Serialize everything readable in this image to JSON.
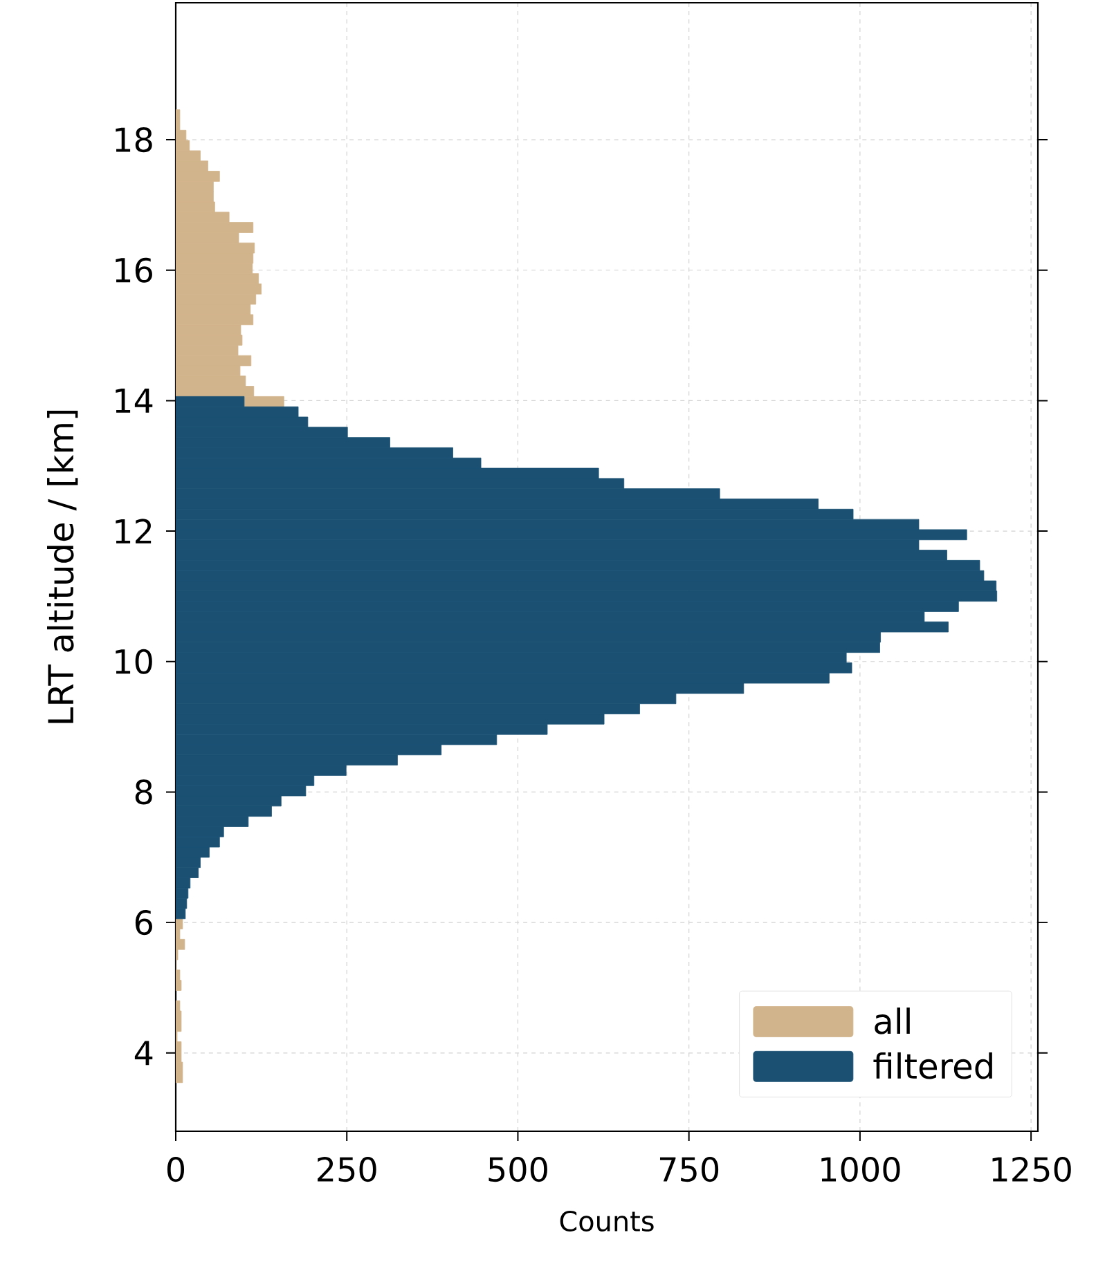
{
  "chart_data": {
    "type": "histogram",
    "orientation": "horizontal",
    "xlabel": "Counts",
    "ylabel": "LRT altitude / [km]",
    "bins": [
      3.545,
      3.702,
      3.859,
      4.016,
      4.173,
      4.33,
      4.487,
      4.644,
      4.801,
      4.958,
      5.115,
      5.272,
      5.429,
      5.586,
      5.743,
      5.9,
      6.057,
      6.214,
      6.371,
      6.528,
      6.685,
      6.842,
      6.999,
      7.156,
      7.313,
      7.47,
      7.627,
      7.784,
      7.941,
      8.098,
      8.255,
      8.412,
      8.569,
      8.726,
      8.883,
      9.04,
      9.197,
      9.354,
      9.511,
      9.668,
      9.825,
      9.982,
      10.139,
      10.296,
      10.453,
      10.61,
      10.767,
      10.924,
      11.081,
      11.238,
      11.395,
      11.552,
      11.709,
      11.866,
      12.023,
      12.18,
      12.337,
      12.494,
      12.651,
      12.808,
      12.965,
      13.122,
      13.279,
      13.436,
      13.593,
      13.75,
      13.907,
      14.064,
      14.221,
      14.378,
      14.535,
      14.692,
      14.849,
      15.006,
      15.163,
      15.32,
      15.477,
      15.634,
      15.791,
      15.948,
      16.105,
      16.262,
      16.419,
      16.576,
      16.733,
      16.89,
      17.047,
      17.204,
      17.361,
      17.518,
      17.675,
      17.832,
      17.989,
      18.146,
      18.303,
      18.46
    ],
    "series": [
      {
        "name": "all",
        "color": "#d2b48c",
        "values": [
          10,
          10,
          8,
          8,
          2,
          8,
          8,
          6,
          null,
          8,
          6,
          0,
          3,
          13,
          6,
          10,
          null,
          null,
          null,
          null,
          null,
          null,
          null,
          null,
          null,
          null,
          null,
          null,
          null,
          null,
          null,
          null,
          null,
          null,
          null,
          null,
          null,
          null,
          null,
          null,
          null,
          null,
          null,
          null,
          null,
          null,
          null,
          null,
          null,
          null,
          null,
          null,
          null,
          null,
          null,
          null,
          null,
          null,
          null,
          null,
          null,
          null,
          null,
          null,
          null,
          null,
          158,
          114,
          102,
          94,
          110,
          91,
          97,
          95,
          113,
          109,
          117,
          125,
          121,
          112,
          113,
          115,
          92,
          113,
          78,
          57,
          55,
          55,
          64,
          47,
          36,
          20,
          15,
          6,
          6
        ]
      },
      {
        "name": "filtered",
        "color": "#1b5073",
        "values": [
          null,
          null,
          null,
          null,
          null,
          null,
          null,
          null,
          null,
          null,
          null,
          null,
          null,
          null,
          null,
          null,
          14,
          16,
          18,
          21,
          33,
          36,
          49,
          64,
          70,
          106,
          140,
          154,
          190,
          202,
          249,
          324,
          388,
          469,
          543,
          626,
          678,
          731,
          830,
          955,
          988,
          980,
          1029,
          1030,
          1129,
          1094,
          1144,
          1200,
          1199,
          1181,
          1175,
          1127,
          1086,
          1156,
          1086,
          990,
          939,
          795,
          655,
          618,
          446,
          405,
          313,
          251,
          193,
          179,
          100,
          null,
          null,
          null,
          null,
          null,
          null,
          null,
          null,
          null,
          null,
          null,
          null,
          null,
          null,
          null,
          null,
          null,
          null,
          null,
          null,
          null,
          null,
          null,
          null,
          null,
          null,
          null,
          null
        ]
      }
    ],
    "xlim": [
      0,
      1260
    ],
    "ylim": [
      2.8,
      20.1
    ],
    "xticks": [
      0,
      250,
      500,
      750,
      1000,
      1250
    ],
    "yticks": [
      4,
      6,
      8,
      10,
      12,
      14,
      16,
      18
    ],
    "grid": true,
    "legend": "bottom right"
  }
}
